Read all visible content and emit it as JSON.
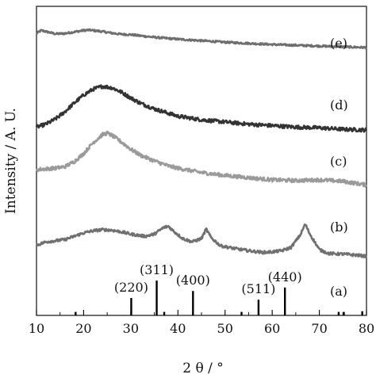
{
  "chart_data": {
    "type": "line",
    "xlabel": "2 θ / °",
    "ylabel": "Intensity / A. U.",
    "xlim": [
      10,
      80
    ],
    "x_ticks": [
      "10",
      "20",
      "30",
      "40",
      "50",
      "60",
      "70",
      "80"
    ],
    "y_ticks": [],
    "grid": false,
    "legend": "none",
    "series": [
      {
        "name": "(e)",
        "color": "#6e6e6e",
        "x": [
          10,
          11,
          12,
          14,
          16,
          18,
          20,
          21,
          22,
          24,
          26,
          28,
          30,
          32,
          35,
          40,
          45,
          50,
          55,
          60,
          65,
          70,
          75,
          80
        ],
        "y": [
          0.62,
          0.7,
          0.67,
          0.61,
          0.62,
          0.66,
          0.7,
          0.71,
          0.7,
          0.67,
          0.63,
          0.6,
          0.59,
          0.56,
          0.52,
          0.47,
          0.43,
          0.39,
          0.36,
          0.33,
          0.31,
          0.29,
          0.27,
          0.25
        ]
      },
      {
        "name": "(d)",
        "color": "#333333",
        "x": [
          10,
          12,
          14,
          16,
          18,
          20,
          22,
          24,
          26,
          28,
          30,
          32,
          35,
          38,
          40,
          45,
          50,
          55,
          60,
          65,
          70,
          75,
          80
        ],
        "y": [
          0.05,
          0.09,
          0.16,
          0.26,
          0.38,
          0.49,
          0.57,
          0.61,
          0.59,
          0.53,
          0.45,
          0.38,
          0.3,
          0.24,
          0.2,
          0.15,
          0.12,
          0.09,
          0.07,
          0.05,
          0.04,
          0.02,
          0.01
        ]
      },
      {
        "name": "(c)",
        "color": "#9a9a9a",
        "x": [
          10,
          12,
          14,
          16,
          18,
          20,
          22,
          24,
          25,
          26,
          28,
          30,
          32,
          35,
          38,
          40,
          45,
          50,
          55,
          60,
          65,
          70,
          75,
          80
        ],
        "y": [
          0.26,
          0.27,
          0.28,
          0.3,
          0.37,
          0.48,
          0.63,
          0.74,
          0.76,
          0.73,
          0.64,
          0.54,
          0.46,
          0.38,
          0.31,
          0.28,
          0.22,
          0.18,
          0.15,
          0.12,
          0.11,
          0.12,
          0.1,
          0.05
        ]
      },
      {
        "name": "(b)",
        "color": "#707070",
        "x": [
          10,
          12,
          14,
          16,
          18,
          20,
          22,
          24,
          26,
          28,
          30,
          33,
          35,
          37,
          38,
          39,
          41,
          43,
          45,
          46,
          47,
          49,
          52,
          55,
          58,
          60,
          62,
          64,
          66,
          67,
          68,
          70,
          72,
          75,
          78,
          80
        ],
        "y": [
          0.18,
          0.24,
          0.26,
          0.28,
          0.34,
          0.4,
          0.44,
          0.46,
          0.45,
          0.42,
          0.38,
          0.34,
          0.38,
          0.5,
          0.52,
          0.44,
          0.3,
          0.24,
          0.3,
          0.47,
          0.32,
          0.17,
          0.12,
          0.08,
          0.05,
          0.06,
          0.08,
          0.14,
          0.37,
          0.56,
          0.38,
          0.1,
          0.03,
          0.02,
          0.0,
          -0.02
        ]
      }
    ],
    "reference_pattern": {
      "name": "(a)",
      "color": "#000000",
      "peaks_x": [
        18.3,
        30.1,
        35.5,
        37.1,
        43.2,
        53.5,
        57.1,
        62.7,
        74.1,
        75.2,
        79.1
      ],
      "peaks_intensity": [
        0.1,
        0.5,
        1.0,
        0.1,
        0.7,
        0.1,
        0.45,
        0.8,
        0.1,
        0.1,
        0.12
      ],
      "labels": [
        {
          "text": "(220)",
          "x": 30.1
        },
        {
          "text": "(311)",
          "x": 35.5
        },
        {
          "text": "(400)",
          "x": 43.2
        },
        {
          "text": "(511)",
          "x": 57.1
        },
        {
          "text": "(440)",
          "x": 62.7
        }
      ]
    }
  }
}
